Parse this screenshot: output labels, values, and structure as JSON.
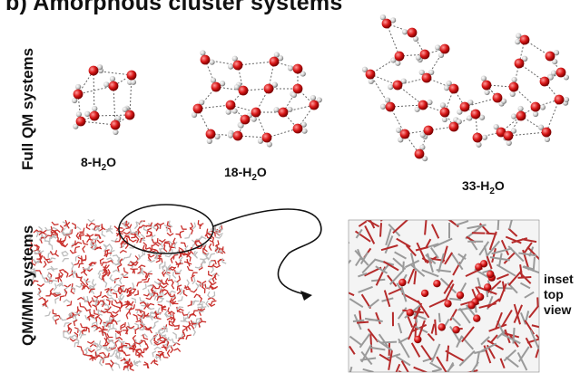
{
  "figure": {
    "panel_letter": "b)",
    "title": "Amorphous cluster systems"
  },
  "rows": [
    {
      "label": "Full QM systems"
    },
    {
      "label": "QM/MM systems"
    }
  ],
  "clusters": [
    {
      "prefix": "8-H",
      "sub": "2",
      "suffix": "O"
    },
    {
      "prefix": "18-H",
      "sub": "2",
      "suffix": "O"
    },
    {
      "prefix": "33-H",
      "sub": "2",
      "suffix": "O"
    }
  ],
  "inset": {
    "lines": [
      "inset",
      "top",
      "view"
    ]
  },
  "colors": {
    "oxygen": "#d81818",
    "hydrogen": "#cfcfcf",
    "bond": "#333333",
    "hbond": "#666666",
    "mm_red": "#c9302c",
    "mm_grey": "#bdbdbd"
  }
}
